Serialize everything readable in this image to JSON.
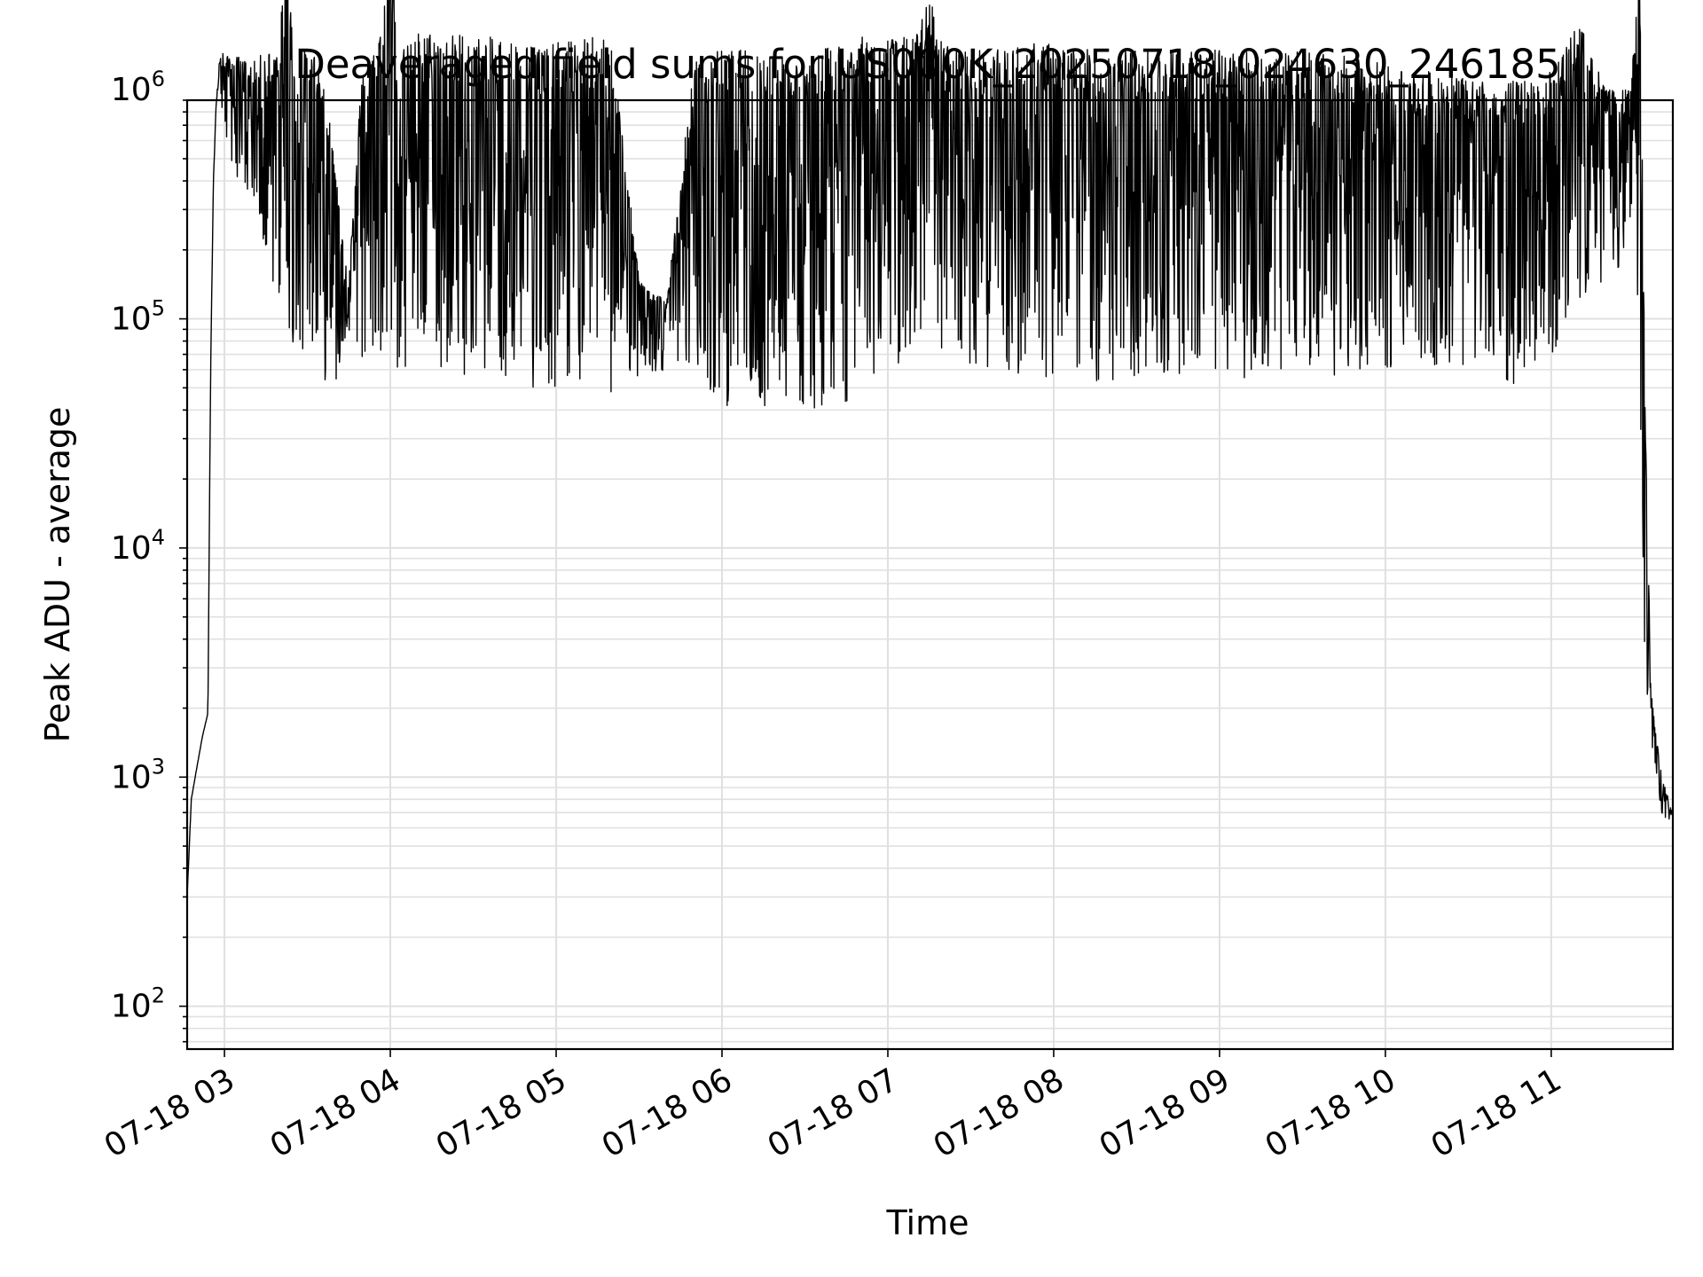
{
  "chart_data": {
    "type": "line",
    "title": "Deaveraged field sums for US000K_20250718_024630_246185",
    "xlabel": "Time",
    "ylabel": "Peak ADU - average",
    "yscale": "log",
    "ylim": [
      65,
      900000
    ],
    "xlim": [
      "2025-07-18 02:46:30",
      "2025-07-18 11:44:00"
    ],
    "grid": true,
    "line_color": "#000000",
    "grid_color": "#e0e0e0",
    "x_ticks": [
      {
        "t": "2025-07-18 03:00",
        "label": "07-18 03"
      },
      {
        "t": "2025-07-18 04:00",
        "label": "07-18 04"
      },
      {
        "t": "2025-07-18 05:00",
        "label": "07-18 05"
      },
      {
        "t": "2025-07-18 06:00",
        "label": "07-18 06"
      },
      {
        "t": "2025-07-18 07:00",
        "label": "07-18 07"
      },
      {
        "t": "2025-07-18 08:00",
        "label": "07-18 08"
      },
      {
        "t": "2025-07-18 09:00",
        "label": "07-18 09"
      },
      {
        "t": "2025-07-18 10:00",
        "label": "07-18 10"
      },
      {
        "t": "2025-07-18 11:00",
        "label": "07-18 11"
      }
    ],
    "y_ticks": [
      {
        "value": 100,
        "base": "10",
        "exp": "2"
      },
      {
        "value": 1000,
        "base": "10",
        "exp": "3"
      },
      {
        "value": 10000,
        "base": "10",
        "exp": "4"
      },
      {
        "value": 100000,
        "base": "10",
        "exp": "5"
      },
      {
        "value": 1000000,
        "base": "10",
        "exp": "6"
      }
    ],
    "series": [
      {
        "x": [
          "2025-07-18 02:46:30",
          "2025-07-18 02:48",
          "2025-07-18 02:50",
          "2025-07-18 02:52",
          "2025-07-18 02:54",
          "2025-07-18 02:55",
          "2025-07-18 02:56",
          "2025-07-18 02:57",
          "2025-07-18 02:58",
          "2025-07-18 02:59",
          "2025-07-18 03:00",
          "2025-07-18 03:05",
          "2025-07-18 03:10",
          "2025-07-18 03:15",
          "2025-07-18 03:20",
          "2025-07-18 03:22",
          "2025-07-18 03:25",
          "2025-07-18 03:30",
          "2025-07-18 03:35",
          "2025-07-18 03:40",
          "2025-07-18 03:45",
          "2025-07-18 03:50",
          "2025-07-18 03:55",
          "2025-07-18 04:00",
          "2025-07-18 04:05",
          "2025-07-18 04:10",
          "2025-07-18 04:15",
          "2025-07-18 04:20",
          "2025-07-18 04:25",
          "2025-07-18 04:30",
          "2025-07-18 04:40",
          "2025-07-18 04:50",
          "2025-07-18 05:00",
          "2025-07-18 05:10",
          "2025-07-18 05:20",
          "2025-07-18 05:30",
          "2025-07-18 05:40",
          "2025-07-18 05:50",
          "2025-07-18 06:00",
          "2025-07-18 06:10",
          "2025-07-18 06:20",
          "2025-07-18 06:30",
          "2025-07-18 06:40",
          "2025-07-18 06:50",
          "2025-07-18 07:00",
          "2025-07-18 07:10",
          "2025-07-18 07:15",
          "2025-07-18 07:20",
          "2025-07-18 07:30",
          "2025-07-18 07:40",
          "2025-07-18 07:50",
          "2025-07-18 08:00",
          "2025-07-18 08:10",
          "2025-07-18 08:20",
          "2025-07-18 08:30",
          "2025-07-18 08:40",
          "2025-07-18 08:50",
          "2025-07-18 09:00",
          "2025-07-18 09:10",
          "2025-07-18 09:20",
          "2025-07-18 09:30",
          "2025-07-18 09:40",
          "2025-07-18 09:50",
          "2025-07-18 10:00",
          "2025-07-18 10:10",
          "2025-07-18 10:20",
          "2025-07-18 10:30",
          "2025-07-18 10:40",
          "2025-07-18 10:50",
          "2025-07-18 11:00",
          "2025-07-18 11:10",
          "2025-07-18 11:20",
          "2025-07-18 11:28",
          "2025-07-18 11:30",
          "2025-07-18 11:32",
          "2025-07-18 11:34",
          "2025-07-18 11:36",
          "2025-07-18 11:38",
          "2025-07-18 11:40",
          "2025-07-18 11:44"
        ],
        "y_high": [
          300,
          800,
          1100,
          1500,
          1900,
          60000,
          400000,
          900000,
          1300000,
          1500000,
          1400000,
          1400000,
          1300000,
          1500000,
          1500000,
          5500000,
          1500000,
          1500000,
          1400000,
          500000,
          150000,
          1400000,
          1500000,
          4500000,
          1500000,
          1800000,
          1800000,
          1700000,
          1800000,
          1700000,
          1700000,
          1600000,
          1600000,
          1700000,
          1700000,
          150000,
          120000,
          1400000,
          1500000,
          1500000,
          1500000,
          1300000,
          1600000,
          1700000,
          1700000,
          1700000,
          2600000,
          1600000,
          1500000,
          1500000,
          1600000,
          1600000,
          1500000,
          1500000,
          1500000,
          1500000,
          1500000,
          1500000,
          1500000,
          1400000,
          1500000,
          1400000,
          1400000,
          1300000,
          1200000,
          1200000,
          1100000,
          1100000,
          1100000,
          1200000,
          2000000,
          1000000,
          1000000,
          1500000,
          4000000,
          50000,
          2500,
          1500,
          1000,
          700
        ],
        "y_low": [
          300,
          800,
          1100,
          1500,
          1900,
          60000,
          400000,
          800000,
          1000000,
          800000,
          600000,
          400000,
          300000,
          150000,
          120000,
          100000,
          60000,
          80000,
          55000,
          50000,
          90000,
          60000,
          55000,
          60000,
          55000,
          60000,
          55000,
          60000,
          55000,
          60000,
          55000,
          50000,
          50000,
          48000,
          45000,
          55000,
          60000,
          55000,
          42000,
          40000,
          38000,
          40000,
          42000,
          45000,
          60000,
          60000,
          60000,
          60000,
          55000,
          60000,
          50000,
          55000,
          55000,
          50000,
          55000,
          55000,
          55000,
          55000,
          55000,
          60000,
          55000,
          55000,
          55000,
          60000,
          60000,
          60000,
          60000,
          55000,
          45000,
          65000,
          120000,
          150000,
          180000,
          300000,
          50000,
          2500,
          1500,
          1000,
          700,
          550
        ]
      }
    ]
  }
}
